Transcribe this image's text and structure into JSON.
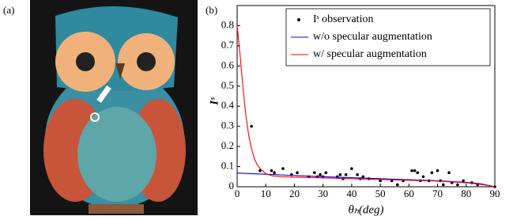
{
  "panel_labels": [
    "(a)",
    "(b)"
  ],
  "chart_data": {
    "type": "line",
    "x_label": "θₕ(deg)",
    "y_label": "Iˢ",
    "xlim": [
      0,
      90
    ],
    "ylim": [
      0,
      0.9
    ],
    "xticks": [
      0,
      10,
      20,
      30,
      40,
      50,
      60,
      70,
      80,
      90
    ],
    "yticks": [
      0,
      0.1,
      0.2,
      0.3,
      0.4,
      0.5,
      0.6,
      0.7,
      0.8
    ],
    "legend": "upper right",
    "series": [
      {
        "name": "Iˢ observation",
        "kind": "scatter",
        "color": "#000000",
        "x": [
          5,
          8,
          12,
          13,
          16,
          19,
          21,
          25,
          27,
          28,
          29,
          30,
          31,
          35,
          36,
          37,
          38,
          40,
          42,
          43,
          44,
          46,
          50,
          54,
          56,
          58,
          61,
          62,
          63,
          64,
          65,
          67,
          68,
          70,
          71,
          72,
          74,
          75,
          77,
          79,
          82,
          84,
          90
        ],
        "values": [
          0.3,
          0.08,
          0.08,
          0.07,
          0.09,
          0.06,
          0.07,
          0.05,
          0.07,
          0.05,
          0.06,
          0.05,
          0.07,
          0.05,
          0.06,
          0.04,
          0.06,
          0.09,
          0.06,
          0.04,
          0.05,
          0.04,
          0.03,
          0.03,
          0.01,
          0.03,
          0.08,
          0.08,
          0.07,
          0.03,
          0.05,
          0.03,
          0.07,
          0.08,
          0.03,
          0.01,
          0.07,
          0.02,
          0.01,
          0.03,
          0.02,
          0.01,
          0
        ]
      },
      {
        "name": "w/o specular augmentation",
        "kind": "line",
        "color": "#0000ff",
        "x": [
          0,
          10,
          20,
          30,
          40,
          50,
          60,
          70,
          80,
          85,
          90
        ],
        "values": [
          0.068,
          0.062,
          0.056,
          0.05,
          0.045,
          0.04,
          0.035,
          0.03,
          0.022,
          0.015,
          0
        ]
      },
      {
        "name": "w/ specular augmentation",
        "kind": "line",
        "color": "#ff0000",
        "x": [
          0,
          1,
          2,
          3,
          4,
          5,
          6,
          7,
          8,
          10,
          12,
          15,
          20,
          30,
          40,
          50,
          60,
          70,
          80,
          85,
          90
        ],
        "values": [
          0.8,
          0.66,
          0.5,
          0.36,
          0.26,
          0.19,
          0.14,
          0.11,
          0.09,
          0.065,
          0.055,
          0.05,
          0.048,
          0.044,
          0.04,
          0.036,
          0.032,
          0.028,
          0.02,
          0.012,
          0
        ]
      }
    ]
  }
}
